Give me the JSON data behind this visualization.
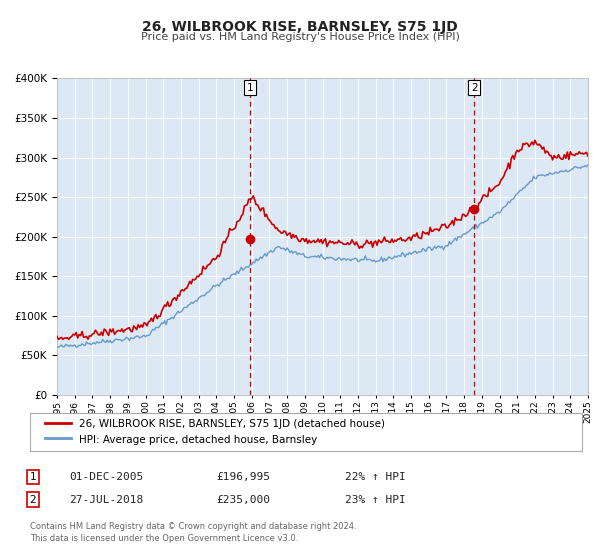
{
  "title": "26, WILBROOK RISE, BARNSLEY, S75 1JD",
  "subtitle": "Price paid vs. HM Land Registry's House Price Index (HPI)",
  "bg_color": "#ffffff",
  "plot_bg_color": "#dce9f5",
  "grid_color": "#ffffff",
  "red_line_color": "#cc0000",
  "blue_line_color": "#6699cc",
  "marker1_date": 2005.92,
  "marker1_value": 196995,
  "marker2_date": 2018.57,
  "marker2_value": 235000,
  "vline_color": "#cc0000",
  "xmin": 1995,
  "xmax": 2025,
  "ymin": 0,
  "ymax": 400000,
  "legend_label_red": "26, WILBROOK RISE, BARNSLEY, S75 1JD (detached house)",
  "legend_label_blue": "HPI: Average price, detached house, Barnsley",
  "table_row1": [
    "1",
    "01-DEC-2005",
    "£196,995",
    "22% ↑ HPI"
  ],
  "table_row2": [
    "2",
    "27-JUL-2018",
    "£235,000",
    "23% ↑ HPI"
  ],
  "footnote1": "Contains HM Land Registry data © Crown copyright and database right 2024.",
  "footnote2": "This data is licensed under the Open Government Licence v3.0."
}
